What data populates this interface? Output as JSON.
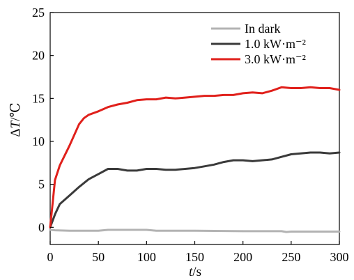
{
  "chart_data": {
    "type": "line",
    "title": "",
    "xlabel": "t/s",
    "ylabel": "ΔT/℃",
    "xlim": [
      0,
      300
    ],
    "ylim": [
      -2,
      25
    ],
    "xticks": [
      0,
      50,
      100,
      150,
      200,
      250,
      300
    ],
    "yticks": [
      0,
      5,
      10,
      15,
      20,
      25
    ],
    "grid": false,
    "legend_position": "top-right",
    "series": [
      {
        "name": "In dark",
        "color": "#b3b3b3",
        "x": [
          0,
          5,
          20,
          50,
          60,
          100,
          110,
          150,
          200,
          240,
          245,
          250,
          300
        ],
        "y": [
          -0.3,
          -0.35,
          -0.4,
          -0.4,
          -0.3,
          -0.3,
          -0.4,
          -0.4,
          -0.45,
          -0.45,
          -0.55,
          -0.5,
          -0.5
        ]
      },
      {
        "name": "1.0 kW·m⁻²",
        "color": "#3a3a3a",
        "x": [
          0,
          5,
          10,
          20,
          30,
          40,
          50,
          60,
          70,
          80,
          90,
          100,
          110,
          120,
          130,
          140,
          150,
          160,
          170,
          180,
          190,
          200,
          210,
          220,
          230,
          240,
          250,
          260,
          270,
          280,
          290,
          300
        ],
        "y": [
          0,
          1.5,
          2.7,
          3.7,
          4.7,
          5.6,
          6.2,
          6.8,
          6.8,
          6.6,
          6.6,
          6.8,
          6.8,
          6.7,
          6.7,
          6.8,
          6.9,
          7.1,
          7.3,
          7.6,
          7.8,
          7.8,
          7.7,
          7.8,
          7.9,
          8.2,
          8.5,
          8.6,
          8.7,
          8.7,
          8.6,
          8.7
        ]
      },
      {
        "name": "3.0 kW·m⁻²",
        "color": "#e0201b",
        "x": [
          0,
          5,
          10,
          20,
          30,
          35,
          40,
          50,
          60,
          70,
          80,
          90,
          100,
          110,
          120,
          130,
          140,
          150,
          160,
          170,
          180,
          190,
          200,
          210,
          220,
          230,
          240,
          250,
          260,
          270,
          280,
          290,
          300
        ],
        "y": [
          0,
          5.5,
          7.2,
          9.5,
          12.0,
          12.7,
          13.1,
          13.5,
          14.0,
          14.3,
          14.5,
          14.8,
          14.9,
          14.9,
          15.1,
          15.0,
          15.1,
          15.2,
          15.3,
          15.3,
          15.4,
          15.4,
          15.6,
          15.7,
          15.6,
          15.9,
          16.3,
          16.2,
          16.2,
          16.3,
          16.2,
          16.2,
          16.0
        ]
      }
    ]
  }
}
